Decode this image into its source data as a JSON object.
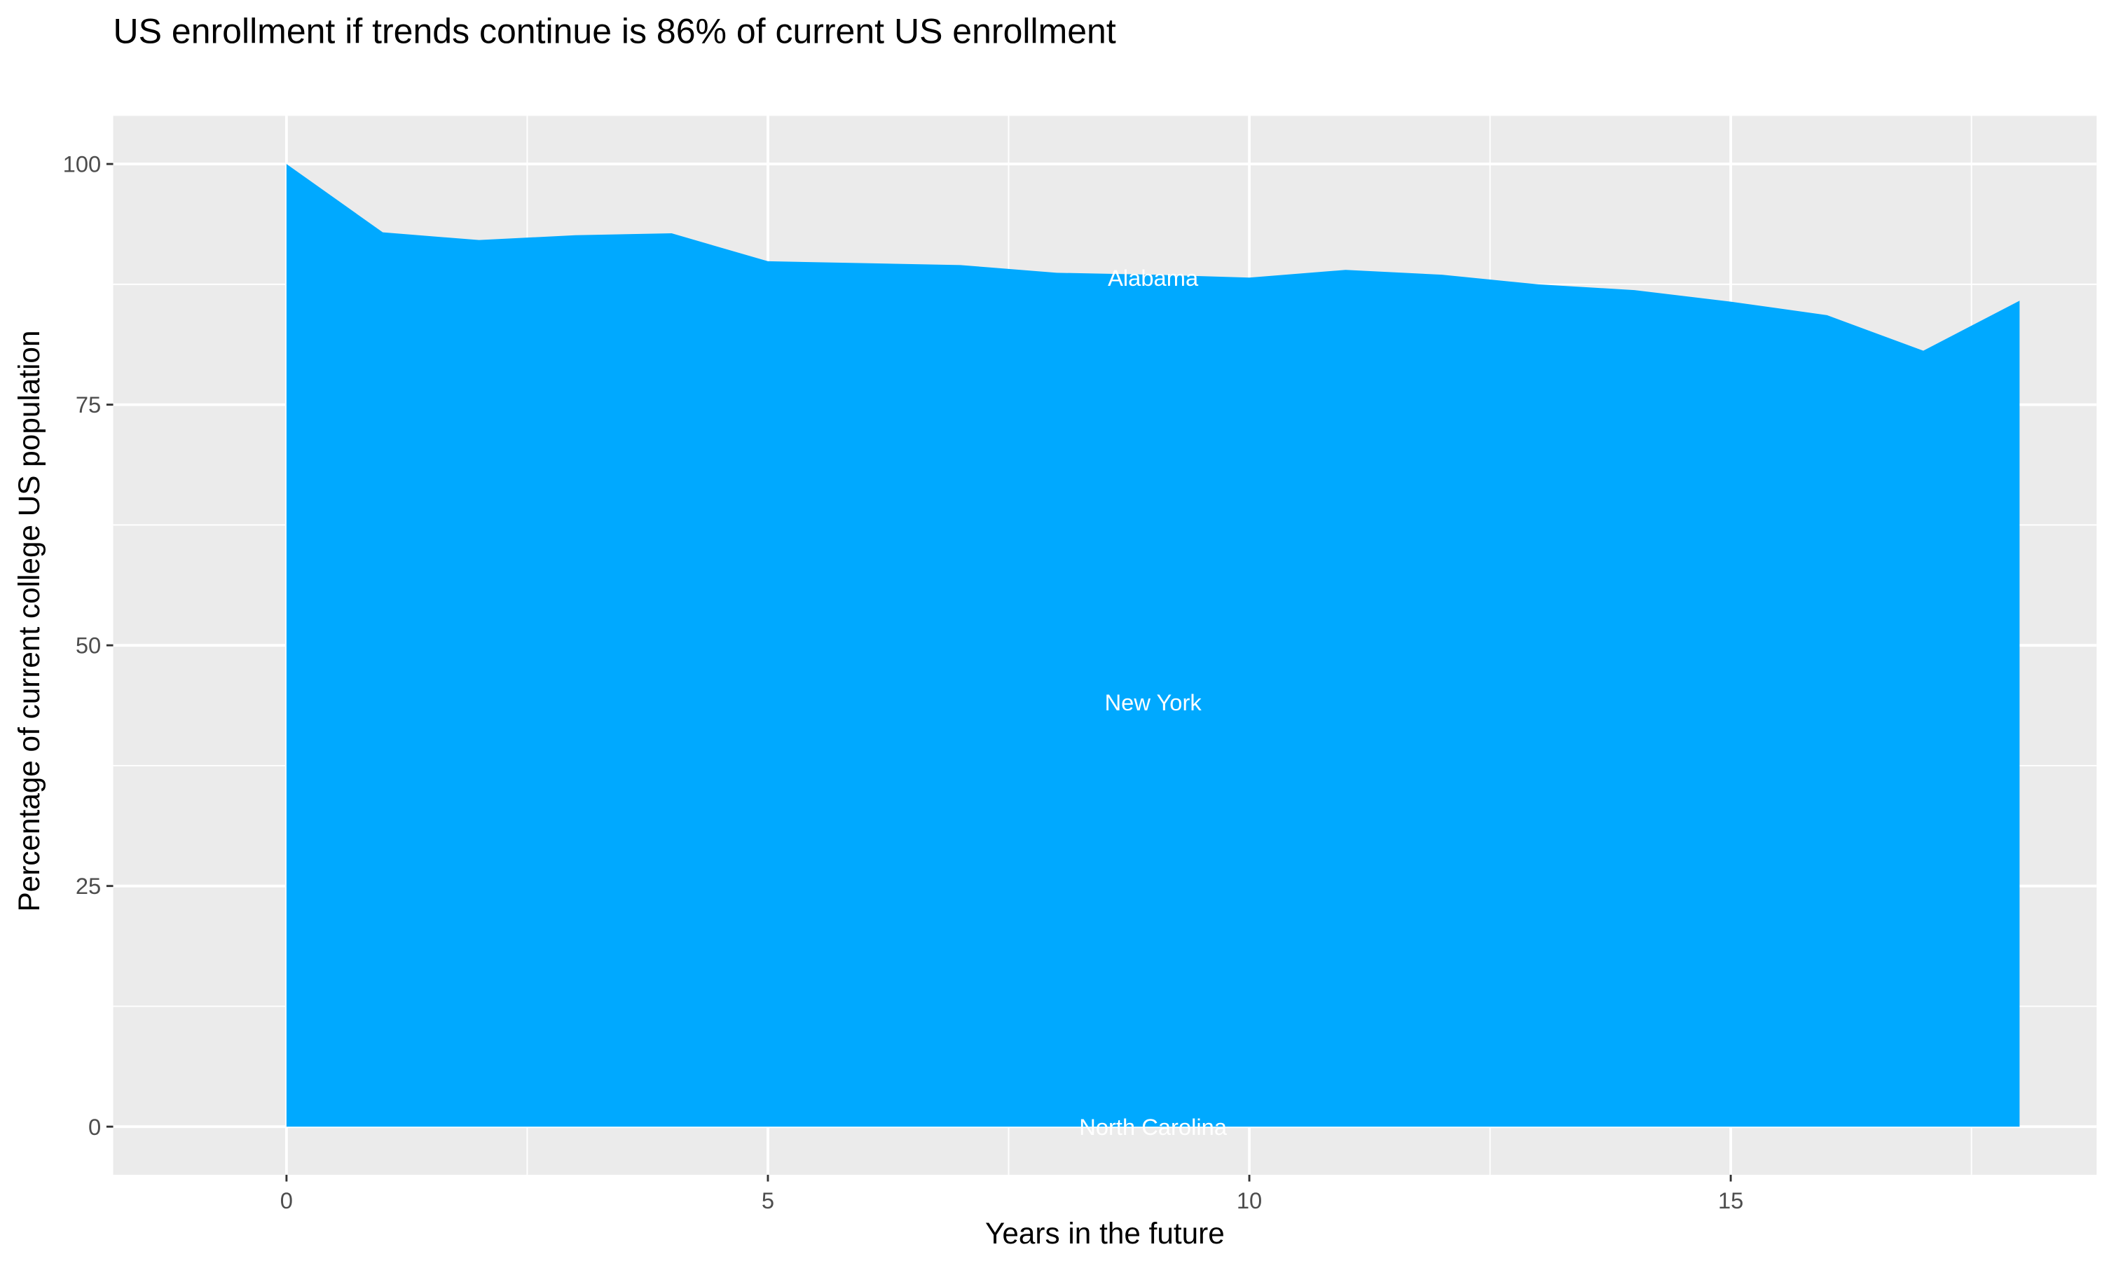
{
  "chart_data": {
    "type": "area",
    "title": "US enrollment if trends continue is 86% of current US enrollment",
    "xlabel": "Years in the future",
    "ylabel": "Percentage of current college US population",
    "xlim": [
      -1.8,
      18.8
    ],
    "ylim": [
      -5,
      105
    ],
    "x_ticks": [
      0,
      5,
      10,
      15
    ],
    "y_ticks": [
      0,
      25,
      50,
      75,
      100
    ],
    "grid": true,
    "fill_color": "#00A9FF",
    "panel_color": "#EBEBEB",
    "x": [
      0,
      1,
      2,
      3,
      4,
      5,
      6,
      7,
      8,
      9,
      10,
      11,
      12,
      13,
      14,
      15,
      16,
      17,
      18
    ],
    "y": [
      100,
      92.9,
      92.1,
      92.6,
      92.8,
      89.9,
      89.7,
      89.5,
      88.7,
      88.5,
      88.2,
      89.0,
      88.5,
      87.5,
      86.9,
      85.7,
      84.3,
      80.6,
      85.8
    ],
    "annotations": [
      {
        "text": "Alabama",
        "x": 9,
        "y": 88.2
      },
      {
        "text": "New York",
        "x": 9,
        "y": 44.1
      },
      {
        "text": "North Carolina",
        "x": 9,
        "y": 0
      }
    ]
  }
}
